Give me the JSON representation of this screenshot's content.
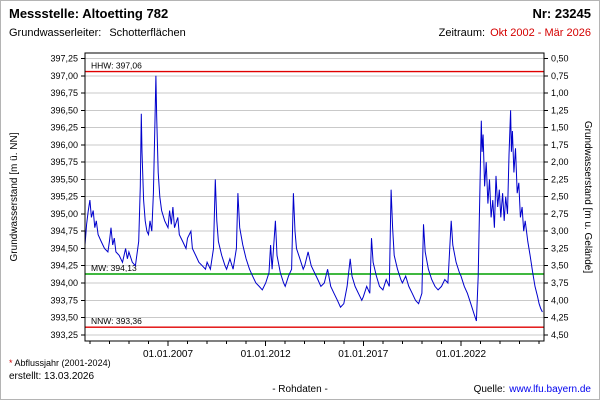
{
  "header": {
    "station": "Messstelle: Altoetting 782",
    "number": "Nr: 23245",
    "aquifer_label": "Grundwasserleiter:",
    "aquifer_value": "Schotterflächen",
    "period_label": "Zeitraum:",
    "period_value": "Okt 2002 - Mär 2026"
  },
  "footer": {
    "footnote_star": "*",
    "footnote_text": "Abflussjahr (2001-2024)",
    "created": "erstellt: 13.03.2026",
    "rohdaten": "- Rohdaten -",
    "source_label": "Quelle:",
    "source_url": "www.lfu.bayern.de"
  },
  "chart_data": {
    "type": "line",
    "title": "",
    "ylabel_left": "Grundwasserstand [m ü. NN]",
    "ylabel_right": "Grundwasserstand [m u. Gelände]",
    "x_range": [
      2002.75,
      2026.25
    ],
    "y_range": [
      393.16,
      397.33
    ],
    "grid": "horizontal",
    "legend": "none",
    "colors": {
      "series": "#0000cc",
      "grid": "#c9c9c9",
      "extreme": "#e00000",
      "mean": "#00a000",
      "axis": "#000000"
    },
    "y_ticks": [
      {
        "v": 397.25,
        "l": "397,25",
        "r": "0,50"
      },
      {
        "v": 397.0,
        "l": "397,00",
        "r": "0,75"
      },
      {
        "v": 396.75,
        "l": "396,75",
        "r": "1,00"
      },
      {
        "v": 396.5,
        "l": "396,50",
        "r": "1,25"
      },
      {
        "v": 396.25,
        "l": "396,25",
        "r": "1,50"
      },
      {
        "v": 396.0,
        "l": "396,00",
        "r": "1,75"
      },
      {
        "v": 395.75,
        "l": "395,75",
        "r": "2,00"
      },
      {
        "v": 395.5,
        "l": "395,50",
        "r": "2,25"
      },
      {
        "v": 395.25,
        "l": "395,25",
        "r": "2,50"
      },
      {
        "v": 395.0,
        "l": "395,00",
        "r": "2,75"
      },
      {
        "v": 394.75,
        "l": "394,75",
        "r": "3,00"
      },
      {
        "v": 394.5,
        "l": "394,50",
        "r": "3,25"
      },
      {
        "v": 394.25,
        "l": "394,25",
        "r": "3,50"
      },
      {
        "v": 394.0,
        "l": "394,00",
        "r": "3,75"
      },
      {
        "v": 393.75,
        "l": "393,75",
        "r": "4,00"
      },
      {
        "v": 393.5,
        "l": "393,50",
        "r": "4,25"
      },
      {
        "v": 393.25,
        "l": "393,25",
        "r": "4,50"
      }
    ],
    "x_ticks": [
      {
        "v": 2007,
        "label": "01.01.2007"
      },
      {
        "v": 2012,
        "label": "01.01.2012"
      },
      {
        "v": 2017,
        "label": "01.01.2017"
      },
      {
        "v": 2022,
        "label": "01.01.2022"
      }
    ],
    "x_minor_ticks": [
      2003,
      2004,
      2005,
      2006,
      2007,
      2008,
      2009,
      2010,
      2011,
      2012,
      2013,
      2014,
      2015,
      2016,
      2017,
      2018,
      2019,
      2020,
      2021,
      2022,
      2023,
      2024,
      2025,
      2026
    ],
    "ref_lines": [
      {
        "name": "HHW",
        "label": "HHW: 397,06",
        "value": 397.06,
        "color": "#e00000"
      },
      {
        "name": "MW",
        "label": "MW: 394,13",
        "value": 394.13,
        "color": "#00a000"
      },
      {
        "name": "NNW",
        "label": "NNW: 393,36",
        "value": 393.36,
        "color": "#e00000"
      }
    ],
    "series": [
      {
        "name": "Grundwasserstand (Rohdaten)",
        "color": "#0000cc",
        "points": [
          [
            2002.75,
            394.55
          ],
          [
            2002.83,
            394.85
          ],
          [
            2002.92,
            395.05
          ],
          [
            2003.0,
            395.2
          ],
          [
            2003.08,
            394.95
          ],
          [
            2003.17,
            395.05
          ],
          [
            2003.25,
            394.8
          ],
          [
            2003.33,
            394.9
          ],
          [
            2003.42,
            394.7
          ],
          [
            2003.58,
            394.6
          ],
          [
            2003.75,
            394.5
          ],
          [
            2003.92,
            394.45
          ],
          [
            2004.0,
            394.6
          ],
          [
            2004.08,
            394.8
          ],
          [
            2004.17,
            394.55
          ],
          [
            2004.25,
            394.65
          ],
          [
            2004.33,
            394.45
          ],
          [
            2004.5,
            394.4
          ],
          [
            2004.67,
            394.3
          ],
          [
            2004.83,
            394.5
          ],
          [
            2004.92,
            394.35
          ],
          [
            2005.0,
            394.45
          ],
          [
            2005.17,
            394.3
          ],
          [
            2005.33,
            394.25
          ],
          [
            2005.5,
            394.6
          ],
          [
            2005.58,
            395.4
          ],
          [
            2005.63,
            396.45
          ],
          [
            2005.67,
            395.9
          ],
          [
            2005.75,
            395.2
          ],
          [
            2005.83,
            394.9
          ],
          [
            2005.92,
            394.75
          ],
          [
            2006.0,
            394.7
          ],
          [
            2006.08,
            394.9
          ],
          [
            2006.17,
            394.75
          ],
          [
            2006.25,
            395.3
          ],
          [
            2006.33,
            396.3
          ],
          [
            2006.38,
            397.0
          ],
          [
            2006.42,
            396.4
          ],
          [
            2006.5,
            395.6
          ],
          [
            2006.58,
            395.25
          ],
          [
            2006.67,
            395.05
          ],
          [
            2006.83,
            394.9
          ],
          [
            2007.0,
            394.8
          ],
          [
            2007.08,
            395.05
          ],
          [
            2007.17,
            394.85
          ],
          [
            2007.25,
            395.1
          ],
          [
            2007.33,
            394.8
          ],
          [
            2007.5,
            394.95
          ],
          [
            2007.58,
            394.7
          ],
          [
            2007.75,
            394.6
          ],
          [
            2007.92,
            394.5
          ],
          [
            2008.0,
            394.65
          ],
          [
            2008.17,
            394.75
          ],
          [
            2008.25,
            394.5
          ],
          [
            2008.42,
            394.4
          ],
          [
            2008.58,
            394.3
          ],
          [
            2008.75,
            394.25
          ],
          [
            2008.92,
            394.2
          ],
          [
            2009.0,
            394.3
          ],
          [
            2009.17,
            394.2
          ],
          [
            2009.33,
            394.5
          ],
          [
            2009.42,
            395.5
          ],
          [
            2009.5,
            394.9
          ],
          [
            2009.58,
            394.6
          ],
          [
            2009.75,
            394.4
          ],
          [
            2009.92,
            394.25
          ],
          [
            2010.0,
            394.2
          ],
          [
            2010.17,
            394.35
          ],
          [
            2010.33,
            394.2
          ],
          [
            2010.5,
            394.5
          ],
          [
            2010.58,
            395.3
          ],
          [
            2010.67,
            394.8
          ],
          [
            2010.83,
            394.55
          ],
          [
            2011.0,
            394.35
          ],
          [
            2011.17,
            394.2
          ],
          [
            2011.33,
            394.1
          ],
          [
            2011.5,
            394.0
          ],
          [
            2011.67,
            393.95
          ],
          [
            2011.83,
            393.9
          ],
          [
            2012.0,
            394.0
          ],
          [
            2012.17,
            394.15
          ],
          [
            2012.25,
            394.55
          ],
          [
            2012.33,
            394.2
          ],
          [
            2012.5,
            394.9
          ],
          [
            2012.58,
            394.4
          ],
          [
            2012.75,
            394.15
          ],
          [
            2012.92,
            394.0
          ],
          [
            2013.0,
            393.95
          ],
          [
            2013.17,
            394.1
          ],
          [
            2013.33,
            394.2
          ],
          [
            2013.42,
            395.3
          ],
          [
            2013.5,
            394.75
          ],
          [
            2013.58,
            394.5
          ],
          [
            2013.75,
            394.35
          ],
          [
            2013.92,
            394.2
          ],
          [
            2014.0,
            394.25
          ],
          [
            2014.17,
            394.45
          ],
          [
            2014.33,
            394.25
          ],
          [
            2014.5,
            394.15
          ],
          [
            2014.67,
            394.05
          ],
          [
            2014.83,
            393.95
          ],
          [
            2015.0,
            394.0
          ],
          [
            2015.17,
            394.2
          ],
          [
            2015.33,
            393.95
          ],
          [
            2015.5,
            393.85
          ],
          [
            2015.67,
            393.75
          ],
          [
            2015.83,
            393.65
          ],
          [
            2016.0,
            393.7
          ],
          [
            2016.17,
            393.95
          ],
          [
            2016.33,
            394.35
          ],
          [
            2016.42,
            394.1
          ],
          [
            2016.58,
            393.95
          ],
          [
            2016.75,
            393.85
          ],
          [
            2016.92,
            393.75
          ],
          [
            2017.0,
            393.8
          ],
          [
            2017.17,
            393.95
          ],
          [
            2017.33,
            393.85
          ],
          [
            2017.42,
            394.65
          ],
          [
            2017.5,
            394.3
          ],
          [
            2017.67,
            394.1
          ],
          [
            2017.83,
            393.95
          ],
          [
            2018.0,
            393.9
          ],
          [
            2018.17,
            394.05
          ],
          [
            2018.33,
            393.95
          ],
          [
            2018.42,
            395.35
          ],
          [
            2018.5,
            394.8
          ],
          [
            2018.58,
            394.4
          ],
          [
            2018.75,
            394.2
          ],
          [
            2018.92,
            394.05
          ],
          [
            2019.0,
            394.0
          ],
          [
            2019.17,
            394.1
          ],
          [
            2019.33,
            393.95
          ],
          [
            2019.5,
            393.85
          ],
          [
            2019.67,
            393.75
          ],
          [
            2019.83,
            393.7
          ],
          [
            2020.0,
            393.85
          ],
          [
            2020.08,
            394.85
          ],
          [
            2020.17,
            394.45
          ],
          [
            2020.33,
            394.2
          ],
          [
            2020.5,
            394.05
          ],
          [
            2020.67,
            393.95
          ],
          [
            2020.83,
            393.9
          ],
          [
            2021.0,
            393.95
          ],
          [
            2021.17,
            394.05
          ],
          [
            2021.33,
            394.0
          ],
          [
            2021.5,
            394.9
          ],
          [
            2021.58,
            394.55
          ],
          [
            2021.75,
            394.3
          ],
          [
            2021.92,
            394.15
          ],
          [
            2022.0,
            394.1
          ],
          [
            2022.17,
            393.95
          ],
          [
            2022.33,
            393.85
          ],
          [
            2022.5,
            393.7
          ],
          [
            2022.67,
            393.55
          ],
          [
            2022.79,
            393.45
          ],
          [
            2022.88,
            394.1
          ],
          [
            2022.96,
            395.2
          ],
          [
            2023.04,
            396.35
          ],
          [
            2023.08,
            395.9
          ],
          [
            2023.13,
            396.15
          ],
          [
            2023.21,
            395.4
          ],
          [
            2023.29,
            395.75
          ],
          [
            2023.38,
            395.15
          ],
          [
            2023.46,
            395.5
          ],
          [
            2023.54,
            394.95
          ],
          [
            2023.63,
            395.2
          ],
          [
            2023.71,
            394.8
          ],
          [
            2023.79,
            395.55
          ],
          [
            2023.88,
            395.1
          ],
          [
            2023.96,
            395.35
          ],
          [
            2024.04,
            394.95
          ],
          [
            2024.13,
            395.3
          ],
          [
            2024.21,
            394.9
          ],
          [
            2024.29,
            395.25
          ],
          [
            2024.38,
            395.0
          ],
          [
            2024.46,
            395.85
          ],
          [
            2024.54,
            396.5
          ],
          [
            2024.58,
            395.9
          ],
          [
            2024.63,
            396.2
          ],
          [
            2024.71,
            395.6
          ],
          [
            2024.79,
            395.95
          ],
          [
            2024.88,
            395.3
          ],
          [
            2024.96,
            395.45
          ],
          [
            2025.04,
            394.95
          ],
          [
            2025.13,
            395.1
          ],
          [
            2025.21,
            394.75
          ],
          [
            2025.29,
            394.9
          ],
          [
            2025.42,
            394.6
          ],
          [
            2025.54,
            394.4
          ],
          [
            2025.67,
            394.15
          ],
          [
            2025.79,
            393.95
          ],
          [
            2025.92,
            393.8
          ],
          [
            2026.0,
            393.7
          ],
          [
            2026.08,
            393.63
          ],
          [
            2026.17,
            393.58
          ]
        ]
      }
    ]
  }
}
